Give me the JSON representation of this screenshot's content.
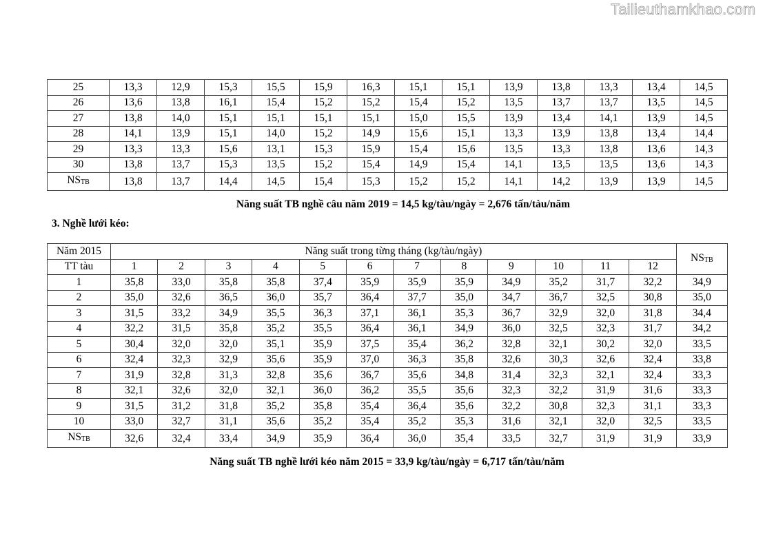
{
  "watermark": "Tailieuthamkhao.com",
  "table1": {
    "rows": [
      [
        "25",
        "13,3",
        "12,9",
        "15,3",
        "15,5",
        "15,9",
        "16,3",
        "15,1",
        "15,1",
        "13,9",
        "13,8",
        "13,3",
        "13,4",
        "14,5"
      ],
      [
        "26",
        "13,6",
        "13,8",
        "16,1",
        "15,4",
        "15,2",
        "15,2",
        "15,4",
        "15,2",
        "13,5",
        "13,7",
        "13,7",
        "13,5",
        "14,5"
      ],
      [
        "27",
        "13,8",
        "14,0",
        "15,1",
        "15,1",
        "15,1",
        "15,1",
        "15,0",
        "15,5",
        "13,9",
        "13,4",
        "14,1",
        "13,9",
        "14,5"
      ],
      [
        "28",
        "14,1",
        "13,9",
        "15,1",
        "14,0",
        "15,2",
        "14,9",
        "15,6",
        "15,1",
        "13,3",
        "13,9",
        "13,8",
        "13,4",
        "14,4"
      ],
      [
        "29",
        "13,3",
        "13,3",
        "15,6",
        "13,1",
        "15,3",
        "15,9",
        "15,4",
        "15,6",
        "13,5",
        "13,3",
        "13,8",
        "13,6",
        "14,3"
      ],
      [
        "30",
        "13,8",
        "13,7",
        "15,3",
        "13,5",
        "15,2",
        "15,4",
        "14,9",
        "15,4",
        "14,1",
        "13,5",
        "13,5",
        "13,6",
        "14,3"
      ]
    ],
    "avg_label": "NS",
    "avg_sub": "TB",
    "avg_row": [
      "13,8",
      "13,7",
      "14,4",
      "14,5",
      "15,4",
      "15,3",
      "15,2",
      "15,2",
      "14,1",
      "14,2",
      "13,9",
      "13,9",
      "14,5"
    ]
  },
  "caption1": "Năng suất TB nghề câu năm 2019 = 14,5 kg/tàu/ngày = 2,676 tấn/tàu/năm",
  "section_heading": "3. Nghề lưới kéo:",
  "table2": {
    "year_label": "Năm 2015",
    "group_header": "Năng suất trong từng tháng (kg/tàu/ngày)",
    "avg_label": "NS",
    "avg_sub": "TB",
    "row_header": "TT tàu",
    "months": [
      "1",
      "2",
      "3",
      "4",
      "5",
      "6",
      "7",
      "8",
      "9",
      "10",
      "11",
      "12"
    ],
    "rows": [
      [
        "1",
        "35,8",
        "33,0",
        "35,8",
        "35,8",
        "37,4",
        "35,9",
        "35,9",
        "35,9",
        "34,9",
        "35,2",
        "31,7",
        "32,2",
        "34,9"
      ],
      [
        "2",
        "35,0",
        "32,6",
        "36,5",
        "36,0",
        "35,7",
        "36,4",
        "37,7",
        "35,0",
        "34,7",
        "36,7",
        "32,5",
        "30,8",
        "35,0"
      ],
      [
        "3",
        "31,5",
        "33,2",
        "34,9",
        "35,5",
        "36,3",
        "37,1",
        "36,1",
        "35,3",
        "36,7",
        "32,9",
        "32,0",
        "31,8",
        "34,4"
      ],
      [
        "4",
        "32,2",
        "31,5",
        "35,8",
        "35,2",
        "35,5",
        "36,4",
        "36,1",
        "34,9",
        "36,0",
        "32,5",
        "32,3",
        "31,7",
        "34,2"
      ],
      [
        "5",
        "30,4",
        "32,0",
        "32,0",
        "35,1",
        "35,9",
        "37,5",
        "35,4",
        "36,2",
        "32,8",
        "32,1",
        "30,2",
        "32,0",
        "33,5"
      ],
      [
        "6",
        "32,4",
        "32,3",
        "32,9",
        "35,6",
        "35,9",
        "37,0",
        "36,3",
        "35,8",
        "32,6",
        "30,3",
        "32,6",
        "32,4",
        "33,8"
      ],
      [
        "7",
        "31,9",
        "32,8",
        "31,3",
        "32,8",
        "35,6",
        "36,7",
        "35,6",
        "34,8",
        "31,4",
        "32,3",
        "32,1",
        "32,4",
        "33,3"
      ],
      [
        "8",
        "32,1",
        "32,6",
        "32,0",
        "32,1",
        "36,0",
        "36,2",
        "35,5",
        "35,6",
        "32,3",
        "32,2",
        "31,9",
        "31,6",
        "33,3"
      ],
      [
        "9",
        "31,5",
        "31,2",
        "31,8",
        "35,2",
        "35,8",
        "35,4",
        "36,4",
        "35,6",
        "32,2",
        "30,8",
        "32,3",
        "31,1",
        "33,3"
      ],
      [
        "10",
        "33,0",
        "32,7",
        "31,1",
        "35,6",
        "35,2",
        "35,4",
        "35,2",
        "35,3",
        "31,6",
        "32,1",
        "32,0",
        "32,5",
        "33,5"
      ]
    ],
    "avg_row": [
      "32,6",
      "32,4",
      "33,4",
      "34,9",
      "35,9",
      "36,4",
      "36,0",
      "35,4",
      "33,5",
      "32,7",
      "31,9",
      "31,9",
      "33,9"
    ]
  },
  "caption2": "Năng suất TB nghề lưới kéo năm 2015 = 33,9 kg/tàu/ngày = 6,717 tấn/tàu/năm"
}
